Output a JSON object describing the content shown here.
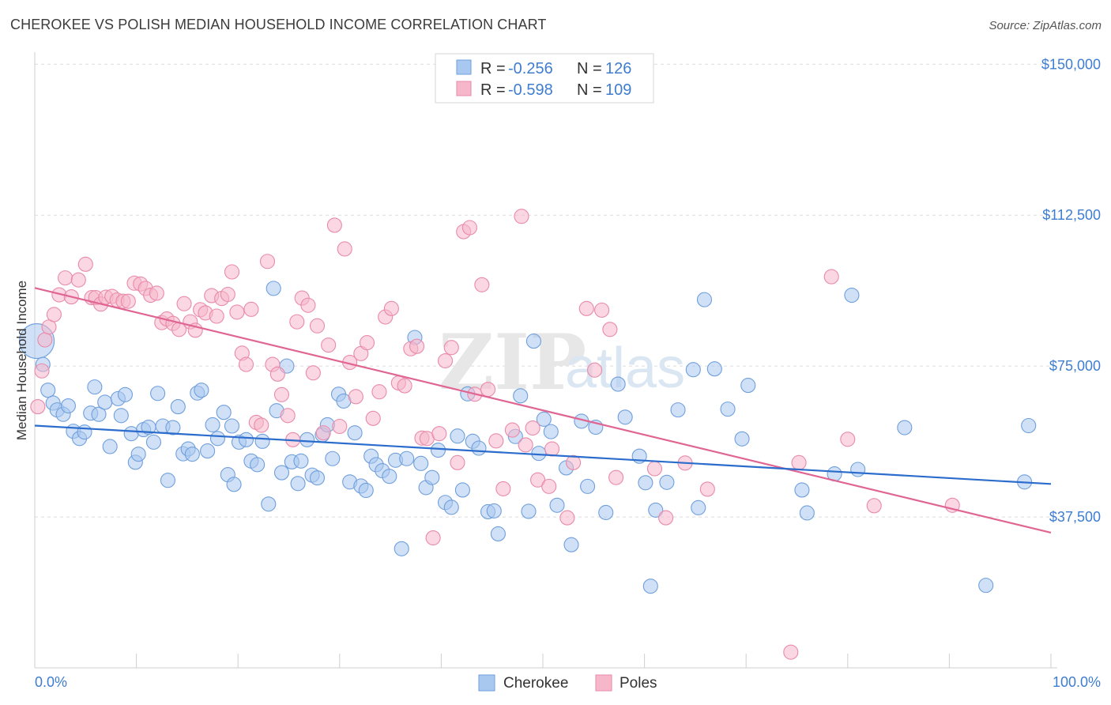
{
  "title": "CHEROKEE VS POLISH MEDIAN HOUSEHOLD INCOME CORRELATION CHART",
  "source": "Source: ZipAtlas.com",
  "watermark": {
    "zip": "ZIP",
    "atlas": "atlas"
  },
  "colors": {
    "cherokee_fill": "#a9c8f0",
    "cherokee_stroke": "#6f9fdc",
    "cherokee_line": "#2b6ccc",
    "poles_fill": "#f6b7cb",
    "poles_stroke": "#e98aaa",
    "poles_line": "#e06592",
    "tick_text": "#3f7dd0",
    "grid": "#dcdcdc"
  },
  "legend": {
    "rows": [
      {
        "r_label": "R = ",
        "r_value": "-0.256",
        "n_label": "N = ",
        "n_value": "126"
      },
      {
        "r_label": "R = ",
        "r_value": "-0.598",
        "n_label": "N = ",
        "n_value": "109"
      }
    ]
  },
  "chart_data": {
    "type": "scatter",
    "title": "CHEROKEE VS POLISH MEDIAN HOUSEHOLD INCOME CORRELATION CHART",
    "xlabel": "",
    "ylabel": "Median Household Income",
    "x_tick_labels": [
      "0.0%",
      "100.0%"
    ],
    "y_tick_labels": [
      "$37,500",
      "$75,000",
      "$112,500",
      "$150,000"
    ],
    "y_ticks": [
      37500,
      75000,
      112500,
      150000
    ],
    "xlim": [
      0,
      100
    ],
    "ylim": [
      0,
      153000
    ],
    "grid": true,
    "legend_position": "top-center",
    "series": [
      {
        "name": "Cherokee",
        "r": -0.256,
        "n": 126,
        "trend": {
          "x": [
            0,
            100
          ],
          "y": [
            60200,
            45700
          ]
        },
        "points": [
          [
            0.2,
            81200
          ],
          [
            0.8,
            75400
          ],
          [
            1.3,
            69000
          ],
          [
            1.8,
            65800
          ],
          [
            2.2,
            64100
          ],
          [
            2.8,
            63000
          ],
          [
            3.3,
            65100
          ],
          [
            3.8,
            58800
          ],
          [
            4.4,
            57000
          ],
          [
            4.9,
            58600
          ],
          [
            5.5,
            63300
          ],
          [
            5.9,
            69800
          ],
          [
            6.3,
            63000
          ],
          [
            6.9,
            66000
          ],
          [
            7.4,
            55000
          ],
          [
            8.2,
            66900
          ],
          [
            8.5,
            62700
          ],
          [
            8.9,
            67900
          ],
          [
            9.5,
            58200
          ],
          [
            9.9,
            51100
          ],
          [
            10.2,
            53100
          ],
          [
            10.7,
            59200
          ],
          [
            11.2,
            59800
          ],
          [
            11.7,
            56100
          ],
          [
            12.1,
            68200
          ],
          [
            12.6,
            60100
          ],
          [
            13.1,
            46600
          ],
          [
            13.6,
            59700
          ],
          [
            14.1,
            64900
          ],
          [
            14.6,
            53200
          ],
          [
            15.1,
            54400
          ],
          [
            15.5,
            53100
          ],
          [
            16.0,
            68300
          ],
          [
            16.4,
            69000
          ],
          [
            17.0,
            53900
          ],
          [
            17.5,
            60400
          ],
          [
            18.0,
            57000
          ],
          [
            18.6,
            63500
          ],
          [
            19.0,
            48000
          ],
          [
            19.6,
            45600
          ],
          [
            19.4,
            60100
          ],
          [
            20.1,
            56100
          ],
          [
            20.8,
            56700
          ],
          [
            21.3,
            51400
          ],
          [
            21.9,
            50500
          ],
          [
            22.4,
            56300
          ],
          [
            23.0,
            40700
          ],
          [
            23.5,
            94300
          ],
          [
            23.8,
            63900
          ],
          [
            24.3,
            48500
          ],
          [
            24.8,
            75000
          ],
          [
            25.3,
            51200
          ],
          [
            25.9,
            45800
          ],
          [
            26.2,
            51400
          ],
          [
            26.8,
            56700
          ],
          [
            27.3,
            47900
          ],
          [
            27.8,
            47200
          ],
          [
            28.3,
            57900
          ],
          [
            28.8,
            60400
          ],
          [
            29.3,
            52000
          ],
          [
            29.9,
            68000
          ],
          [
            30.4,
            66300
          ],
          [
            31.0,
            46200
          ],
          [
            31.5,
            58400
          ],
          [
            32.1,
            45200
          ],
          [
            32.6,
            44100
          ],
          [
            33.1,
            52600
          ],
          [
            33.6,
            50500
          ],
          [
            34.2,
            49000
          ],
          [
            34.9,
            47600
          ],
          [
            35.5,
            51600
          ],
          [
            36.1,
            29600
          ],
          [
            36.6,
            52000
          ],
          [
            37.4,
            82100
          ],
          [
            38.0,
            50800
          ],
          [
            38.5,
            44800
          ],
          [
            39.1,
            47300
          ],
          [
            39.7,
            54100
          ],
          [
            40.4,
            41100
          ],
          [
            41.0,
            39900
          ],
          [
            41.6,
            57600
          ],
          [
            42.1,
            44200
          ],
          [
            42.6,
            68100
          ],
          [
            43.1,
            56300
          ],
          [
            43.7,
            54600
          ],
          [
            44.6,
            38800
          ],
          [
            45.2,
            39000
          ],
          [
            45.6,
            33300
          ],
          [
            47.3,
            57500
          ],
          [
            47.8,
            67600
          ],
          [
            48.6,
            38900
          ],
          [
            49.1,
            81200
          ],
          [
            49.6,
            53300
          ],
          [
            50.1,
            61800
          ],
          [
            50.8,
            58700
          ],
          [
            51.4,
            40400
          ],
          [
            52.3,
            49700
          ],
          [
            52.8,
            30600
          ],
          [
            53.8,
            61300
          ],
          [
            54.4,
            45100
          ],
          [
            55.2,
            59800
          ],
          [
            56.2,
            38600
          ],
          [
            57.4,
            70500
          ],
          [
            58.1,
            62300
          ],
          [
            59.5,
            52600
          ],
          [
            60.1,
            46000
          ],
          [
            60.6,
            20300
          ],
          [
            61.1,
            39200
          ],
          [
            62.2,
            46100
          ],
          [
            63.3,
            64100
          ],
          [
            64.8,
            74100
          ],
          [
            65.3,
            39800
          ],
          [
            65.9,
            91500
          ],
          [
            66.9,
            74300
          ],
          [
            68.2,
            64300
          ],
          [
            69.6,
            56900
          ],
          [
            70.2,
            70200
          ],
          [
            75.5,
            44200
          ],
          [
            76.0,
            38500
          ],
          [
            78.7,
            48200
          ],
          [
            80.4,
            92600
          ],
          [
            81.0,
            49300
          ],
          [
            85.6,
            59700
          ],
          [
            93.6,
            20500
          ],
          [
            97.4,
            46200
          ],
          [
            97.8,
            60200
          ]
        ]
      },
      {
        "name": "Poles",
        "r": -0.598,
        "n": 109,
        "trend": {
          "x": [
            0,
            100
          ],
          "y": [
            94400,
            33600
          ]
        },
        "points": [
          [
            0.3,
            64900
          ],
          [
            0.7,
            73800
          ],
          [
            1.0,
            81500
          ],
          [
            1.4,
            84700
          ],
          [
            1.9,
            87800
          ],
          [
            2.4,
            92700
          ],
          [
            3.0,
            96900
          ],
          [
            3.6,
            92200
          ],
          [
            4.3,
            96400
          ],
          [
            5.0,
            100300
          ],
          [
            5.6,
            92000
          ],
          [
            6.0,
            92000
          ],
          [
            6.5,
            90400
          ],
          [
            7.0,
            92100
          ],
          [
            7.6,
            92300
          ],
          [
            8.1,
            91400
          ],
          [
            8.7,
            91100
          ],
          [
            9.2,
            91100
          ],
          [
            9.8,
            95600
          ],
          [
            10.4,
            95400
          ],
          [
            10.9,
            94300
          ],
          [
            11.4,
            92600
          ],
          [
            12.0,
            93100
          ],
          [
            12.5,
            85800
          ],
          [
            13.0,
            86700
          ],
          [
            13.6,
            85600
          ],
          [
            14.2,
            84100
          ],
          [
            14.7,
            90500
          ],
          [
            15.3,
            86000
          ],
          [
            15.8,
            83900
          ],
          [
            16.3,
            89000
          ],
          [
            16.8,
            88200
          ],
          [
            17.4,
            92500
          ],
          [
            17.9,
            87400
          ],
          [
            18.4,
            91800
          ],
          [
            19.0,
            92800
          ],
          [
            19.4,
            98400
          ],
          [
            19.9,
            88400
          ],
          [
            20.4,
            78200
          ],
          [
            20.8,
            75400
          ],
          [
            21.3,
            89100
          ],
          [
            21.8,
            61000
          ],
          [
            22.3,
            60300
          ],
          [
            22.9,
            101000
          ],
          [
            23.4,
            75400
          ],
          [
            23.9,
            73000
          ],
          [
            24.3,
            67900
          ],
          [
            24.9,
            62700
          ],
          [
            25.4,
            56700
          ],
          [
            25.8,
            86000
          ],
          [
            26.3,
            91900
          ],
          [
            26.9,
            90100
          ],
          [
            27.4,
            73300
          ],
          [
            27.8,
            85000
          ],
          [
            28.4,
            58400
          ],
          [
            28.9,
            80200
          ],
          [
            29.5,
            110000
          ],
          [
            30.0,
            60000
          ],
          [
            30.5,
            104100
          ],
          [
            31.0,
            75900
          ],
          [
            31.6,
            67400
          ],
          [
            32.1,
            78100
          ],
          [
            32.7,
            80800
          ],
          [
            33.3,
            62000
          ],
          [
            33.9,
            68600
          ],
          [
            34.5,
            87200
          ],
          [
            35.1,
            89300
          ],
          [
            35.8,
            70800
          ],
          [
            36.4,
            70100
          ],
          [
            37.0,
            79300
          ],
          [
            37.6,
            79900
          ],
          [
            38.1,
            57100
          ],
          [
            38.6,
            57000
          ],
          [
            39.2,
            32300
          ],
          [
            39.8,
            58200
          ],
          [
            40.4,
            76300
          ],
          [
            41.0,
            79600
          ],
          [
            41.6,
            51000
          ],
          [
            42.2,
            108400
          ],
          [
            42.8,
            109400
          ],
          [
            43.3,
            68000
          ],
          [
            44.0,
            95200
          ],
          [
            44.6,
            69200
          ],
          [
            45.4,
            56400
          ],
          [
            46.1,
            44500
          ],
          [
            47.0,
            59100
          ],
          [
            47.9,
            112200
          ],
          [
            48.3,
            55400
          ],
          [
            49.0,
            59600
          ],
          [
            49.5,
            46700
          ],
          [
            50.6,
            45100
          ],
          [
            50.9,
            54400
          ],
          [
            52.4,
            37300
          ],
          [
            53.0,
            51000
          ],
          [
            54.3,
            89300
          ],
          [
            55.1,
            74000
          ],
          [
            55.8,
            88900
          ],
          [
            56.6,
            84100
          ],
          [
            57.2,
            47300
          ],
          [
            61.0,
            49500
          ],
          [
            62.1,
            37300
          ],
          [
            64.0,
            50900
          ],
          [
            66.2,
            44400
          ],
          [
            74.4,
            3900
          ],
          [
            75.2,
            51000
          ],
          [
            78.4,
            97200
          ],
          [
            80.0,
            56800
          ],
          [
            82.6,
            40300
          ],
          [
            90.3,
            40400
          ]
        ]
      }
    ]
  }
}
